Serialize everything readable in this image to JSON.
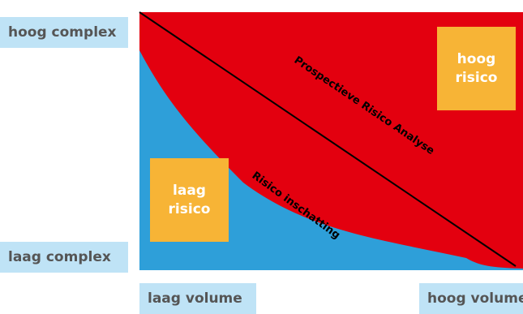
{
  "axes": {
    "y_high": "hoog complex",
    "y_low": "laag complex",
    "x_low": "laag volume",
    "x_high": "hoog volume"
  },
  "boxes": {
    "high_risk": {
      "line1": "hoog",
      "line2": "risico"
    },
    "low_risk": {
      "line1": "laag",
      "line2": "risico"
    }
  },
  "regions": {
    "red_label": "Prospectieve Risico Analyse",
    "blue_label": "Risico inschatting"
  },
  "colors": {
    "red_region": "#e3000f",
    "blue_region": "#2e9fd9",
    "box": "#f7b436",
    "axis_label_bg": "#bfe3f6"
  }
}
